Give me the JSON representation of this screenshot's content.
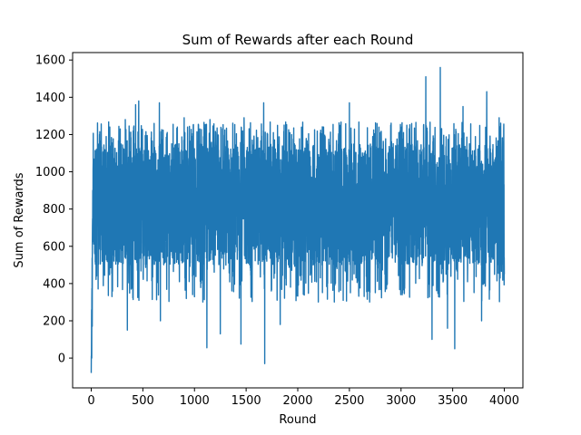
{
  "chart_data": {
    "type": "line",
    "title": "Sum of Rewards after each Round",
    "xlabel": "Round",
    "ylabel": "Sum of Rewards",
    "xlim": [
      -180,
      4180
    ],
    "ylim": [
      -160,
      1640
    ],
    "xticks": [
      0,
      500,
      1000,
      1500,
      2000,
      2500,
      3000,
      3500,
      4000
    ],
    "yticks": [
      0,
      200,
      400,
      600,
      800,
      1000,
      1200,
      1400,
      1600
    ],
    "grid": false,
    "series": [
      {
        "color": "#1f77b4",
        "baseline": 800,
        "typical_range": [
          500,
          1150
        ],
        "points": [
          {
            "x": 0,
            "y": -80
          },
          {
            "x": 5,
            "y": 0
          },
          {
            "x": 10,
            "y": 170
          },
          {
            "x": 15,
            "y": 900
          },
          {
            "x": 80,
            "y": 1200
          },
          {
            "x": 180,
            "y": 1240
          },
          {
            "x": 330,
            "y": 1280
          },
          {
            "x": 350,
            "y": 150
          },
          {
            "x": 430,
            "y": 1360
          },
          {
            "x": 460,
            "y": 1380
          },
          {
            "x": 660,
            "y": 1370
          },
          {
            "x": 670,
            "y": 200
          },
          {
            "x": 900,
            "y": 1290
          },
          {
            "x": 1120,
            "y": 55
          },
          {
            "x": 1150,
            "y": 1280
          },
          {
            "x": 1250,
            "y": 130
          },
          {
            "x": 1450,
            "y": 75
          },
          {
            "x": 1480,
            "y": 1290
          },
          {
            "x": 1670,
            "y": 1370
          },
          {
            "x": 1680,
            "y": -30
          },
          {
            "x": 1830,
            "y": 180
          },
          {
            "x": 2250,
            "y": 1240
          },
          {
            "x": 2500,
            "y": 1370
          },
          {
            "x": 2900,
            "y": 1250
          },
          {
            "x": 3240,
            "y": 1510
          },
          {
            "x": 3300,
            "y": 100
          },
          {
            "x": 3380,
            "y": 1560
          },
          {
            "x": 3450,
            "y": 160
          },
          {
            "x": 3520,
            "y": 50
          },
          {
            "x": 3600,
            "y": 1350
          },
          {
            "x": 3780,
            "y": 200
          },
          {
            "x": 3830,
            "y": 1430
          },
          {
            "x": 3950,
            "y": 1290
          },
          {
            "x": 4000,
            "y": 450
          }
        ]
      }
    ]
  }
}
